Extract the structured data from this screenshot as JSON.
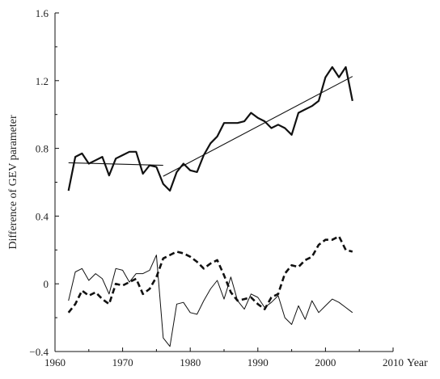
{
  "chart_data": {
    "type": "line",
    "title": "",
    "xlabel": "Year",
    "ylabel": "Difference of GEV parameter",
    "xlim": [
      1960,
      2010
    ],
    "ylim": [
      -0.4,
      1.6
    ],
    "x_ticks": [
      1960,
      1970,
      1980,
      1990,
      2000,
      2010
    ],
    "y_ticks": [
      -0.4,
      0,
      0.4,
      0.8,
      1.2,
      1.6
    ],
    "x_tick_labels": [
      "1960",
      "1970",
      "1980",
      "1990",
      "2000",
      "2010"
    ],
    "y_tick_labels": [
      "−0.4",
      "0",
      "0.4",
      "0.8",
      "1.2",
      "1.6"
    ],
    "grid": false,
    "legend": "none",
    "series": [
      {
        "style": "thick-solid",
        "x": [
          1962,
          1963,
          1964,
          1965,
          1966,
          1967,
          1968,
          1969,
          1970,
          1971,
          1972,
          1973,
          1974,
          1975,
          1976,
          1977,
          1978,
          1979,
          1980,
          1981,
          1982,
          1983,
          1984,
          1985,
          1986,
          1987,
          1988,
          1989,
          1990,
          1991,
          1992,
          1993,
          1994,
          1995,
          1996,
          1997,
          1998,
          1999,
          2000,
          2001,
          2002,
          2003,
          2004
        ],
        "y": [
          0.55,
          0.75,
          0.77,
          0.71,
          0.73,
          0.75,
          0.64,
          0.74,
          0.76,
          0.78,
          0.78,
          0.65,
          0.7,
          0.69,
          0.59,
          0.55,
          0.66,
          0.71,
          0.67,
          0.66,
          0.76,
          0.83,
          0.87,
          0.95,
          0.95,
          0.95,
          0.96,
          1.01,
          0.98,
          0.96,
          0.92,
          0.94,
          0.92,
          0.88,
          1.01,
          1.03,
          1.05,
          1.08,
          1.22,
          1.28,
          1.22,
          1.28,
          1.08
        ]
      },
      {
        "style": "thick-dashed",
        "x": [
          1962,
          1963,
          1964,
          1965,
          1966,
          1967,
          1968,
          1969,
          1970,
          1971,
          1972,
          1973,
          1974,
          1975,
          1976,
          1977,
          1978,
          1979,
          1980,
          1981,
          1982,
          1983,
          1984,
          1985,
          1986,
          1987,
          1988,
          1989,
          1990,
          1991,
          1992,
          1993,
          1994,
          1995,
          1996,
          1997,
          1998,
          1999,
          2000,
          2001,
          2002,
          2003,
          2004
        ],
        "y": [
          -0.17,
          -0.12,
          -0.04,
          -0.07,
          -0.05,
          -0.09,
          -0.12,
          0.0,
          -0.01,
          0.01,
          0.03,
          -0.06,
          -0.03,
          0.04,
          0.15,
          0.17,
          0.19,
          0.18,
          0.16,
          0.13,
          0.09,
          0.12,
          0.14,
          0.05,
          -0.05,
          -0.1,
          -0.09,
          -0.08,
          -0.12,
          -0.15,
          -0.08,
          -0.06,
          0.06,
          0.11,
          0.1,
          0.14,
          0.16,
          0.23,
          0.26,
          0.26,
          0.28,
          0.2,
          0.19
        ]
      },
      {
        "style": "thin-solid",
        "x": [
          1962,
          1963,
          1964,
          1965,
          1966,
          1967,
          1968,
          1969,
          1970,
          1971,
          1972,
          1973,
          1974,
          1975,
          1976,
          1977,
          1978,
          1979,
          1980,
          1981,
          1982,
          1983,
          1984,
          1985,
          1986,
          1987,
          1988,
          1989,
          1990,
          1991,
          1992,
          1993,
          1994,
          1995,
          1996,
          1997,
          1998,
          1999,
          2000,
          2001,
          2002,
          2003,
          2004
        ],
        "y": [
          -0.1,
          0.07,
          0.09,
          0.02,
          0.06,
          0.03,
          -0.06,
          0.09,
          0.08,
          0.01,
          0.06,
          0.06,
          0.08,
          0.17,
          -0.32,
          -0.37,
          -0.12,
          -0.11,
          -0.17,
          -0.18,
          -0.1,
          -0.03,
          0.02,
          -0.09,
          0.04,
          -0.1,
          -0.15,
          -0.06,
          -0.08,
          -0.14,
          -0.11,
          -0.07,
          -0.2,
          -0.24,
          -0.13,
          -0.21,
          -0.1,
          -0.17,
          -0.13,
          -0.09,
          -0.11,
          -0.14,
          -0.17
        ]
      }
    ],
    "trend_lines": [
      {
        "x": [
          1962,
          1976
        ],
        "y": [
          0.715,
          0.7
        ]
      },
      {
        "x": [
          1976,
          2004
        ],
        "y": [
          0.635,
          1.225
        ]
      }
    ]
  }
}
